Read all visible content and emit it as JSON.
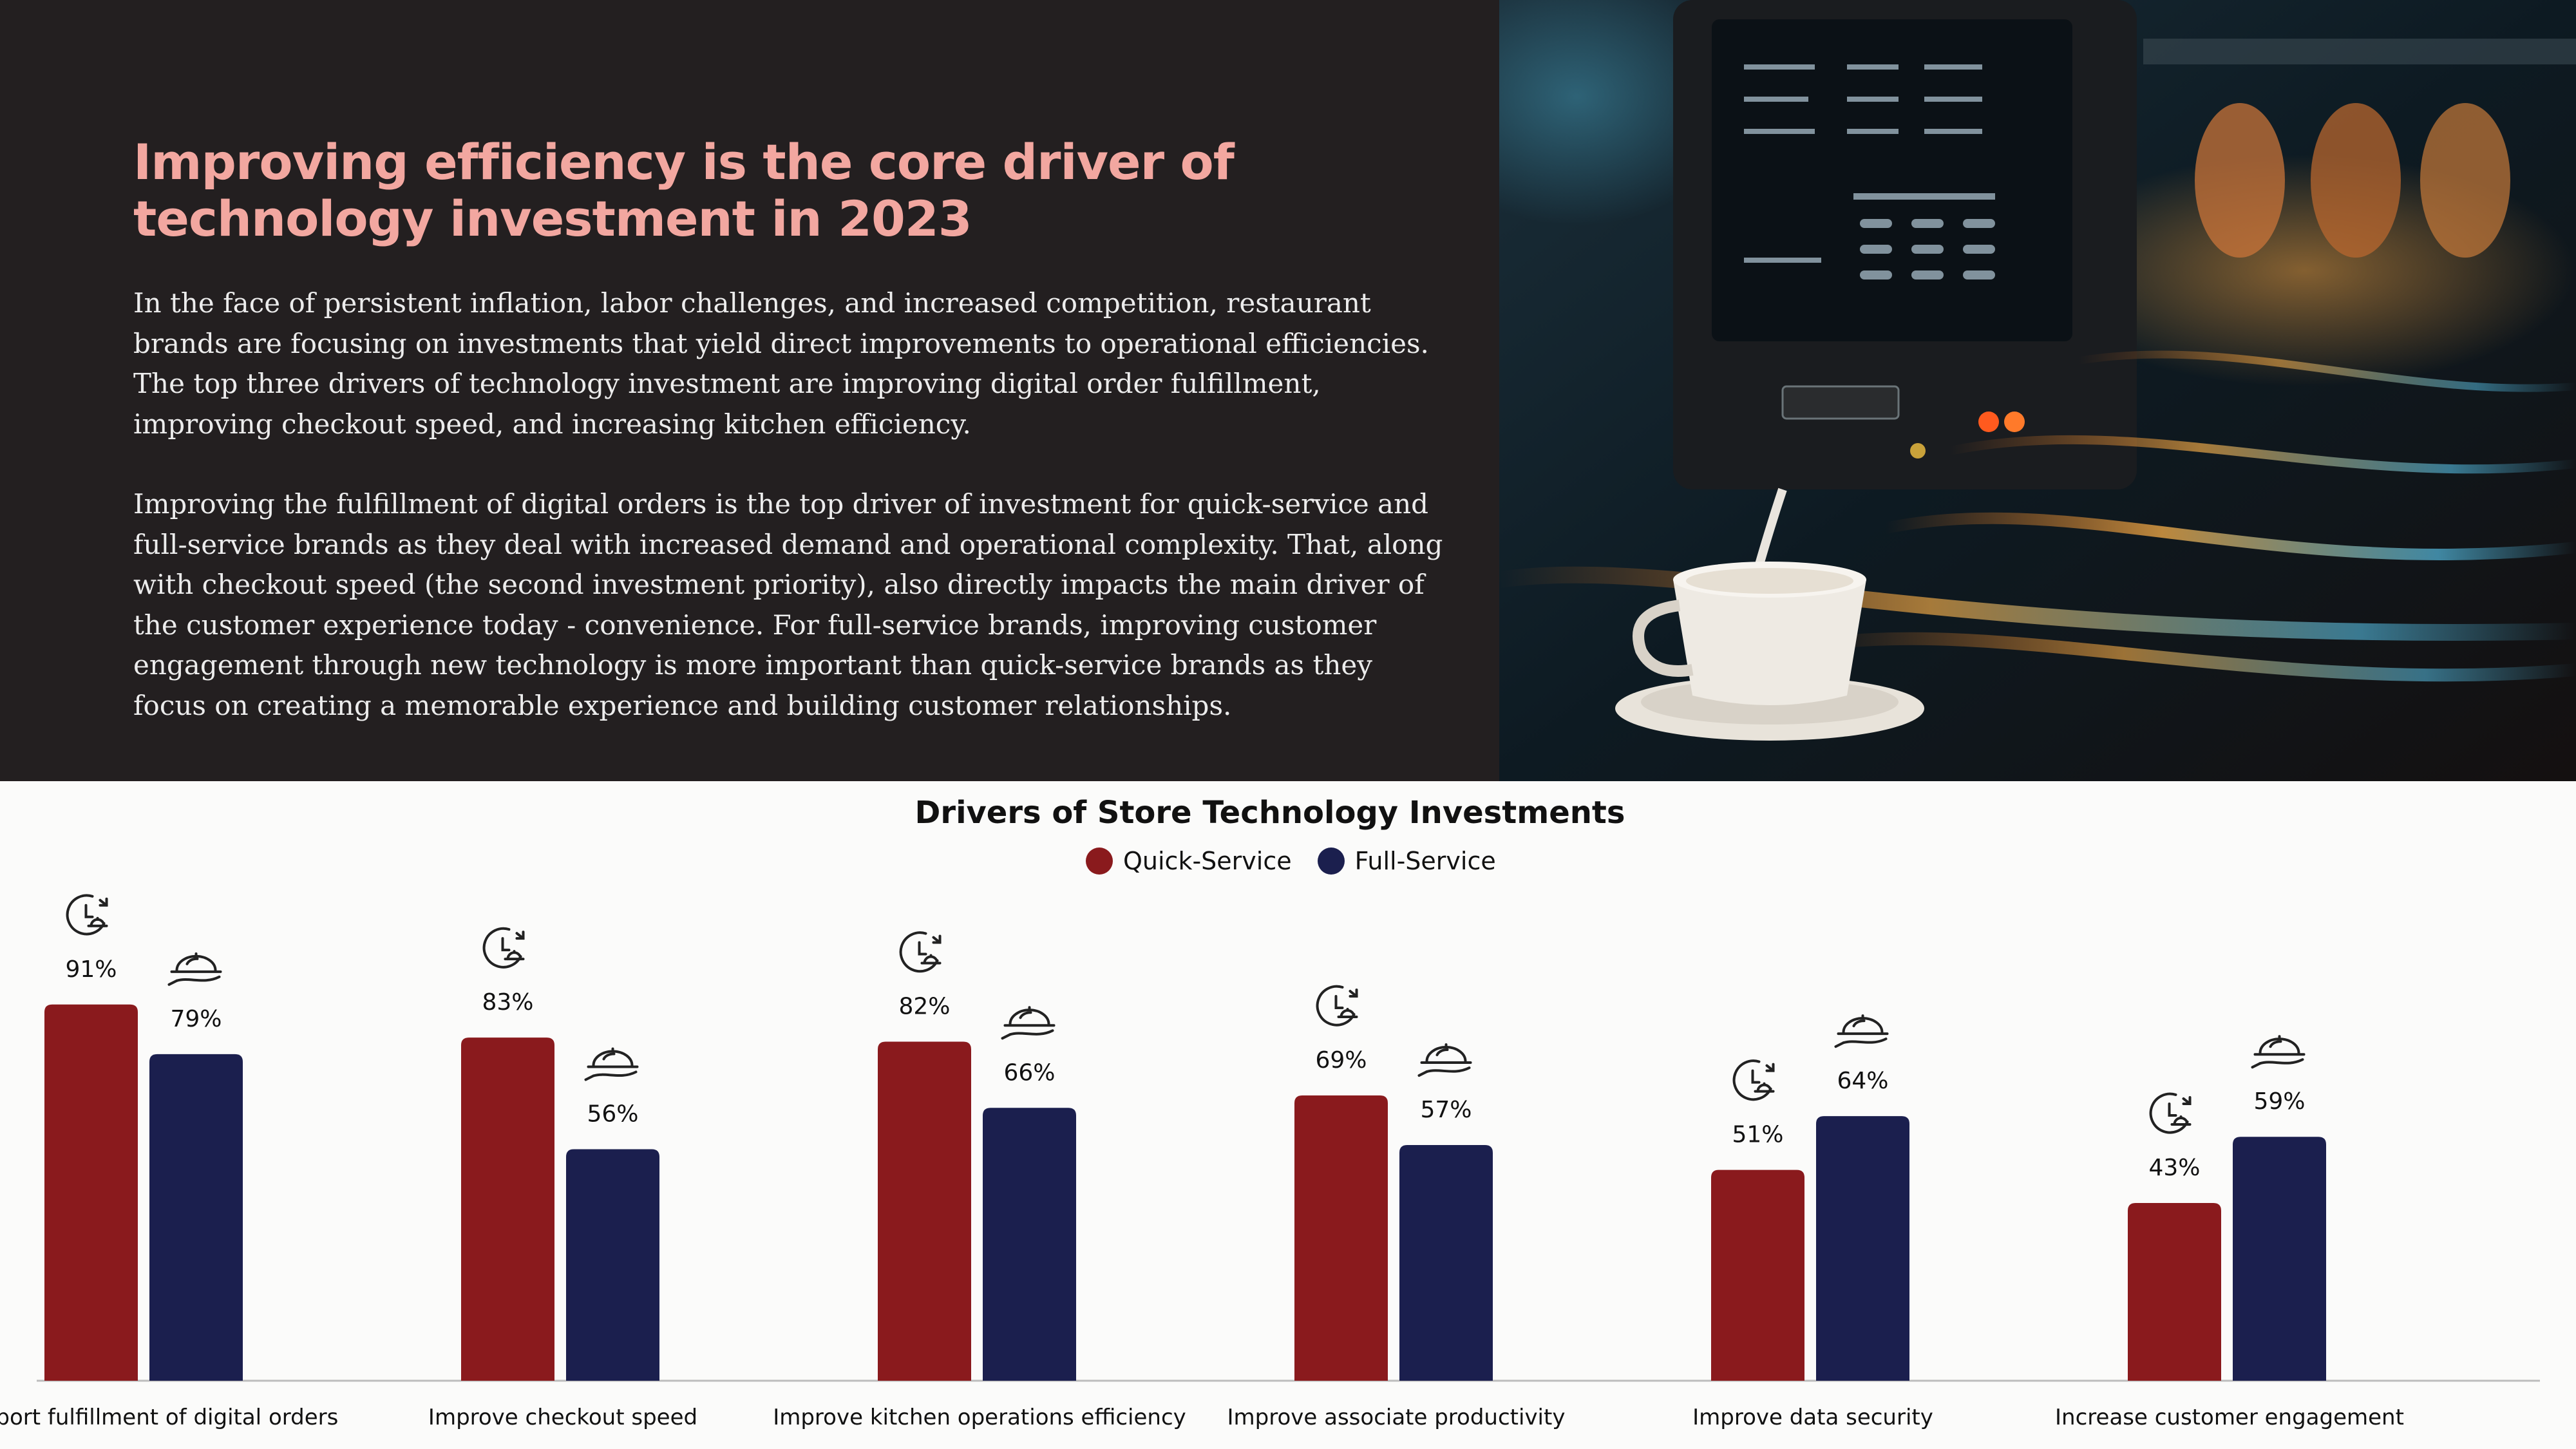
{
  "header": {
    "title": "Improving efficiency is the core driver of technology investment in 2023",
    "paragraph1": "In the face of persistent inflation, labor challenges, and increased competition, restaurant brands are focusing on investments that yield direct improvements to operational efficiencies. The top three drivers of technology investment are improving digital order fulfillment, improving checkout speed, and increasing kitchen efficiency.",
    "paragraph2": "Improving the fulfillment of digital orders is the top driver of investment for quick-service and full-service brands as they deal with increased demand and operational complexity. That, along with checkout speed (the second investment priority), also directly impacts the main driver of the customer experience today - convenience. For full-service brands, improving customer engagement through new technology is more important than quick-service brands as they focus on creating a memorable experience and building customer relationships."
  },
  "colors": {
    "quick_service": "#8a1a1d",
    "full_service": "#1b1f4e",
    "headline": "#f2a7a0",
    "dark_bg": "#231f20"
  },
  "icons": {
    "quick_service": "fast-clock-tray-icon",
    "full_service": "serving-cloche-icon"
  },
  "chart_data": {
    "type": "bar",
    "title": "Drivers of Store Technology Investments",
    "categories": [
      "Support fulfillment of digital orders",
      "Improve checkout speed",
      "Improve kitchen operations efficiency",
      "Improve associate productivity",
      "Improve data security",
      "Increase customer engagement"
    ],
    "series": [
      {
        "name": "Quick-Service",
        "values": [
          91,
          83,
          82,
          69,
          51,
          43
        ]
      },
      {
        "name": "Full-Service",
        "values": [
          79,
          56,
          66,
          57,
          64,
          59
        ]
      }
    ],
    "value_suffix": "%",
    "ylim": [
      0,
      100
    ],
    "grid": false,
    "legend": "top-center"
  }
}
